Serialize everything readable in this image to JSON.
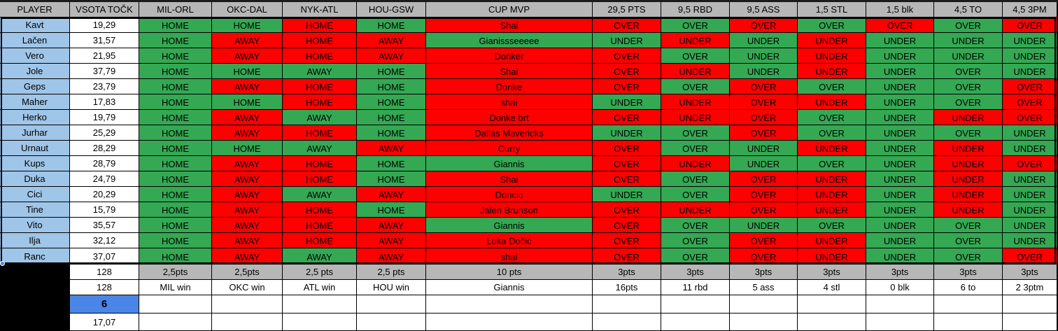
{
  "colors": {
    "header": "#b7b7b7",
    "green": "#34a853",
    "red": "#ff0000",
    "name": "#9fc5e8",
    "selected": "#4a86e8"
  },
  "headers": [
    "PLAYER",
    "VSOTA TOČK",
    "MIL-ORL",
    "OKC-DAL",
    "NYK-ATL",
    "HOU-GSW",
    "CUP MVP",
    "29,5 PTS",
    "9,5 RBD",
    "9,5 ASS",
    "1,5 STL",
    "1,5 blk",
    "4,5 TO",
    "4,5 3PM"
  ],
  "players": [
    {
      "name": "Kavt",
      "total": "19,29",
      "picks": [
        [
          "HOME",
          "g"
        ],
        [
          "HOME",
          "g"
        ],
        [
          "HOME",
          "r"
        ],
        [
          "HOME",
          "g"
        ],
        [
          "Shai",
          "r"
        ],
        [
          "OVER",
          "r"
        ],
        [
          "OVER",
          "g"
        ],
        [
          "OVER",
          "r"
        ],
        [
          "OVER",
          "g"
        ],
        [
          "OVER",
          "r"
        ],
        [
          "OVER",
          "g"
        ],
        [
          "OVER",
          "r"
        ]
      ]
    },
    {
      "name": "Lačen",
      "total": "31,57",
      "picks": [
        [
          "HOME",
          "g"
        ],
        [
          "AWAY",
          "r"
        ],
        [
          "HOME",
          "r"
        ],
        [
          "AWAY",
          "r"
        ],
        [
          "Gianissseeeee",
          "g"
        ],
        [
          "UNDER",
          "g"
        ],
        [
          "UNDER",
          "r"
        ],
        [
          "UNDER",
          "g"
        ],
        [
          "UNDER",
          "r"
        ],
        [
          "UNDER",
          "g"
        ],
        [
          "UNDER",
          "g"
        ],
        [
          "UNDER",
          "g"
        ]
      ]
    },
    {
      "name": "Vero",
      "total": "21,95",
      "picks": [
        [
          "HOME",
          "g"
        ],
        [
          "AWAY",
          "r"
        ],
        [
          "HOME",
          "r"
        ],
        [
          "AWAY",
          "r"
        ],
        [
          "Donker",
          "r"
        ],
        [
          "OVER",
          "r"
        ],
        [
          "OVER",
          "g"
        ],
        [
          "UNDER",
          "g"
        ],
        [
          "UNDER",
          "r"
        ],
        [
          "UNDER",
          "g"
        ],
        [
          "UNDER",
          "g"
        ],
        [
          "UNDER",
          "g"
        ]
      ]
    },
    {
      "name": "Jole",
      "total": "37,79",
      "picks": [
        [
          "HOME",
          "g"
        ],
        [
          "HOME",
          "g"
        ],
        [
          "AWAY",
          "g"
        ],
        [
          "HOME",
          "g"
        ],
        [
          "Shai",
          "r"
        ],
        [
          "OVER",
          "r"
        ],
        [
          "UNDER",
          "r"
        ],
        [
          "UNDER",
          "g"
        ],
        [
          "UNDER",
          "r"
        ],
        [
          "UNDER",
          "g"
        ],
        [
          "OVER",
          "g"
        ],
        [
          "UNDER",
          "g"
        ]
      ]
    },
    {
      "name": "Geps",
      "total": "23,79",
      "picks": [
        [
          "HOME",
          "g"
        ],
        [
          "AWAY",
          "r"
        ],
        [
          "HOME",
          "r"
        ],
        [
          "HOME",
          "g"
        ],
        [
          "Donke",
          "r"
        ],
        [
          "OVER",
          "r"
        ],
        [
          "OVER",
          "g"
        ],
        [
          "OVER",
          "r"
        ],
        [
          "OVER",
          "g"
        ],
        [
          "UNDER",
          "g"
        ],
        [
          "OVER",
          "g"
        ],
        [
          "OVER",
          "r"
        ]
      ]
    },
    {
      "name": "Maher",
      "total": "17,83",
      "picks": [
        [
          "HOME",
          "g"
        ],
        [
          "HOME",
          "g"
        ],
        [
          "HOME",
          "r"
        ],
        [
          "HOME",
          "g"
        ],
        [
          "shai",
          "r"
        ],
        [
          "UNDER",
          "g"
        ],
        [
          "UNDER",
          "r"
        ],
        [
          "OVER",
          "r"
        ],
        [
          "UNDER",
          "r"
        ],
        [
          "UNDER",
          "g"
        ],
        [
          "OVER",
          "g"
        ],
        [
          "OVER",
          "r"
        ]
      ]
    },
    {
      "name": "Herko",
      "total": "19,79",
      "picks": [
        [
          "HOME",
          "g"
        ],
        [
          "AWAY",
          "r"
        ],
        [
          "AWAY",
          "g"
        ],
        [
          "HOME",
          "g"
        ],
        [
          "Donke brt",
          "r"
        ],
        [
          "OVER",
          "r"
        ],
        [
          "UNDER",
          "r"
        ],
        [
          "OVER",
          "r"
        ],
        [
          "OVER",
          "g"
        ],
        [
          "UNDER",
          "g"
        ],
        [
          "UNDER",
          "r"
        ],
        [
          "OVER",
          "r"
        ]
      ]
    },
    {
      "name": "Jurhar",
      "total": "25,29",
      "picks": [
        [
          "HOME",
          "g"
        ],
        [
          "AWAY",
          "r"
        ],
        [
          "HOME",
          "r"
        ],
        [
          "HOME",
          "g"
        ],
        [
          "Dallas Mavericks",
          "r"
        ],
        [
          "UNDER",
          "g"
        ],
        [
          "OVER",
          "g"
        ],
        [
          "OVER",
          "r"
        ],
        [
          "OVER",
          "g"
        ],
        [
          "UNDER",
          "g"
        ],
        [
          "OVER",
          "g"
        ],
        [
          "UNDER",
          "g"
        ]
      ]
    },
    {
      "name": "Urnaut",
      "total": "28,29",
      "picks": [
        [
          "HOME",
          "g"
        ],
        [
          "HOME",
          "g"
        ],
        [
          "AWAY",
          "g"
        ],
        [
          "AWAY",
          "r"
        ],
        [
          "Curry",
          "r"
        ],
        [
          "OVER",
          "r"
        ],
        [
          "OVER",
          "g"
        ],
        [
          "UNDER",
          "g"
        ],
        [
          "UNDER",
          "r"
        ],
        [
          "UNDER",
          "g"
        ],
        [
          "UNDER",
          "r"
        ],
        [
          "UNDER",
          "g"
        ]
      ]
    },
    {
      "name": "Kups",
      "total": "28,79",
      "picks": [
        [
          "HOME",
          "g"
        ],
        [
          "AWAY",
          "r"
        ],
        [
          "HOME",
          "r"
        ],
        [
          "HOME",
          "g"
        ],
        [
          "Giannis",
          "g"
        ],
        [
          "OVER",
          "r"
        ],
        [
          "UNDER",
          "r"
        ],
        [
          "UNDER",
          "g"
        ],
        [
          "OVER",
          "g"
        ],
        [
          "UNDER",
          "g"
        ],
        [
          "UNDER",
          "r"
        ],
        [
          "OVER",
          "r"
        ]
      ]
    },
    {
      "name": "Duka",
      "total": "24,79",
      "picks": [
        [
          "HOME",
          "g"
        ],
        [
          "AWAY",
          "r"
        ],
        [
          "HOME",
          "r"
        ],
        [
          "HOME",
          "g"
        ],
        [
          "Shai",
          "r"
        ],
        [
          "OVER",
          "r"
        ],
        [
          "OVER",
          "g"
        ],
        [
          "OVER",
          "r"
        ],
        [
          "UNDER",
          "r"
        ],
        [
          "UNDER",
          "g"
        ],
        [
          "UNDER",
          "r"
        ],
        [
          "UNDER",
          "g"
        ]
      ]
    },
    {
      "name": "Cici",
      "total": "20,29",
      "picks": [
        [
          "HOME",
          "g"
        ],
        [
          "AWAY",
          "r"
        ],
        [
          "AWAY",
          "g"
        ],
        [
          "AWAY",
          "r"
        ],
        [
          "Doncic",
          "r"
        ],
        [
          "UNDER",
          "g"
        ],
        [
          "OVER",
          "g"
        ],
        [
          "OVER",
          "r"
        ],
        [
          "UNDER",
          "r"
        ],
        [
          "UNDER",
          "g"
        ],
        [
          "UNDER",
          "r"
        ],
        [
          "UNDER",
          "g"
        ]
      ]
    },
    {
      "name": "Tine",
      "total": "15,79",
      "picks": [
        [
          "HOME",
          "g"
        ],
        [
          "AWAY",
          "r"
        ],
        [
          "HOME",
          "r"
        ],
        [
          "HOME",
          "g"
        ],
        [
          "Jalen Brunson",
          "r"
        ],
        [
          "OVER",
          "r"
        ],
        [
          "UNDER",
          "r"
        ],
        [
          "OVER",
          "r"
        ],
        [
          "UNDER",
          "r"
        ],
        [
          "UNDER",
          "g"
        ],
        [
          "UNDER",
          "r"
        ],
        [
          "UNDER",
          "g"
        ]
      ]
    },
    {
      "name": "Vito",
      "total": "35,57",
      "picks": [
        [
          "HOME",
          "g"
        ],
        [
          "AWAY",
          "r"
        ],
        [
          "HOME",
          "r"
        ],
        [
          "AWAY",
          "r"
        ],
        [
          "Giannis",
          "g"
        ],
        [
          "OVER",
          "r"
        ],
        [
          "OVER",
          "g"
        ],
        [
          "UNDER",
          "g"
        ],
        [
          "OVER",
          "g"
        ],
        [
          "UNDER",
          "g"
        ],
        [
          "OVER",
          "g"
        ],
        [
          "UNDER",
          "g"
        ]
      ]
    },
    {
      "name": "Ilja",
      "total": "32,12",
      "picks": [
        [
          "HOME",
          "g"
        ],
        [
          "AWAY",
          "r"
        ],
        [
          "HOME",
          "r"
        ],
        [
          "AWAY",
          "r"
        ],
        [
          "Luka Dočić",
          "r"
        ],
        [
          "OVER",
          "r"
        ],
        [
          "OVER",
          "g"
        ],
        [
          "OVER",
          "r"
        ],
        [
          "UNDER",
          "r"
        ],
        [
          "UNDER",
          "g"
        ],
        [
          "OVER",
          "g"
        ],
        [
          "UNDER",
          "g"
        ]
      ]
    },
    {
      "name": "Ranc",
      "total": "37,07",
      "picks": [
        [
          "HOME",
          "g"
        ],
        [
          "AWAY",
          "r"
        ],
        [
          "AWAY",
          "g"
        ],
        [
          "AWAY",
          "r"
        ],
        [
          "shai",
          "r"
        ],
        [
          "OVER",
          "r"
        ],
        [
          "OVER",
          "g"
        ],
        [
          "OVER",
          "r"
        ],
        [
          "UNDER",
          "r"
        ],
        [
          "UNDER",
          "g"
        ],
        [
          "OVER",
          "g"
        ],
        [
          "OVER",
          "r"
        ]
      ]
    }
  ],
  "points_row": {
    "total": "128",
    "values": [
      "2,5pts",
      "2,5pts",
      "2,5 pts",
      "2,5 pts",
      "10 pts",
      "3pts",
      "3pts",
      "3pts",
      "3pts",
      "3pts",
      "3pts",
      "3pts"
    ]
  },
  "results_row": {
    "total": "128",
    "values": [
      "MIL win",
      "OKC win",
      "ATL win",
      "HOU win",
      "Giannis",
      "16pts",
      "11 rbd",
      "5 ass",
      "4 stl",
      "0 blk",
      "6 to",
      "2 3ptm"
    ]
  },
  "selected_value": "6",
  "last_value": "17,07"
}
